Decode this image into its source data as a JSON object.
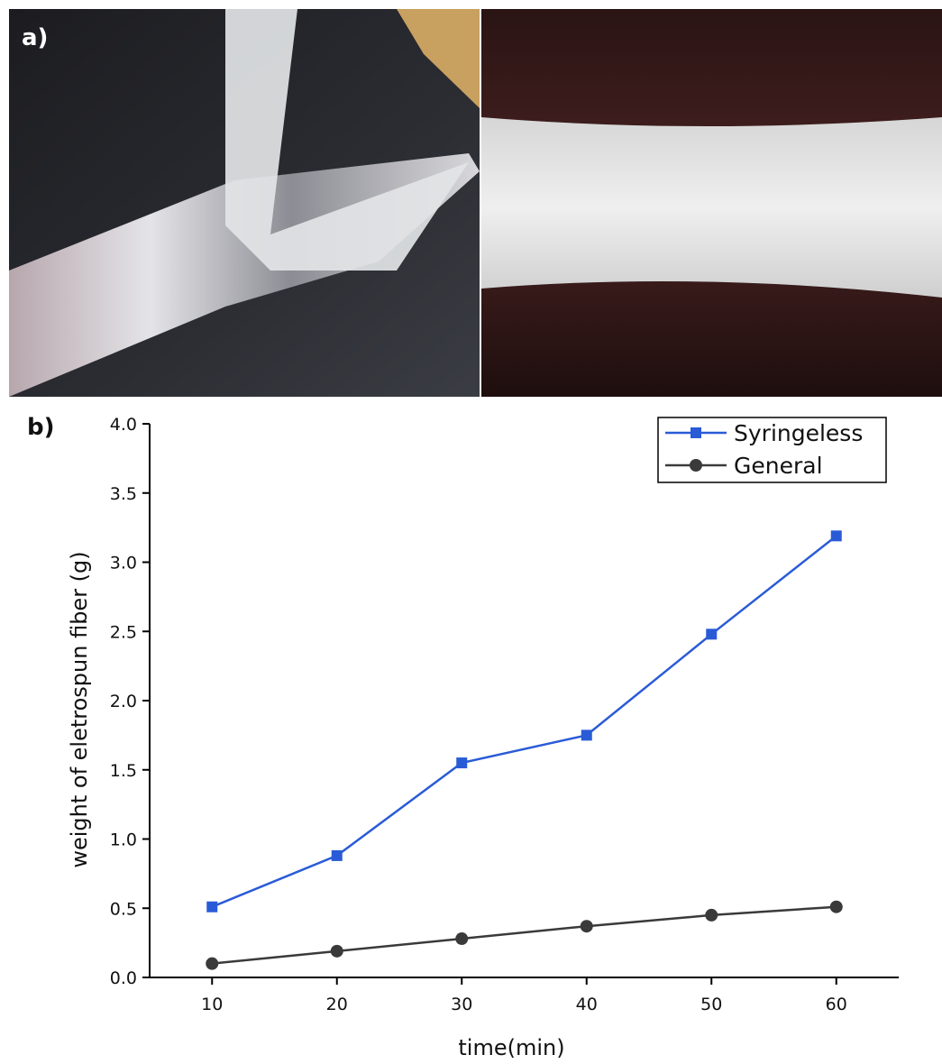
{
  "panel_labels": [
    "a)",
    "b)"
  ],
  "chart_data": {
    "type": "line",
    "x_label": "time(min)",
    "y_label": "weight of eletrospun fiber (g)",
    "x": [
      10,
      20,
      30,
      40,
      50,
      60
    ],
    "series": [
      {
        "name": "Syringeless",
        "color": "#2a5bd7",
        "marker": "square",
        "values": [
          0.51,
          0.88,
          1.55,
          1.75,
          2.48,
          3.19
        ]
      },
      {
        "name": "General",
        "color": "#3a3a3a",
        "marker": "circle",
        "values": [
          0.1,
          0.19,
          0.28,
          0.37,
          0.45,
          0.51
        ]
      }
    ],
    "xlim": [
      5,
      65
    ],
    "xticks": [
      10,
      20,
      30,
      40,
      50,
      60
    ],
    "ylim": [
      0,
      4
    ],
    "yticks": [
      {
        "value": 0,
        "label": "0.0"
      },
      0.5,
      {
        "value": 1,
        "label": "1.0"
      },
      1.5,
      {
        "value": 2,
        "label": "2.0"
      },
      2.5,
      {
        "value": 3,
        "label": "3.0"
      },
      3.5,
      {
        "value": 4,
        "label": "4.0"
      }
    ],
    "legend": "upper right",
    "grid": false
  }
}
